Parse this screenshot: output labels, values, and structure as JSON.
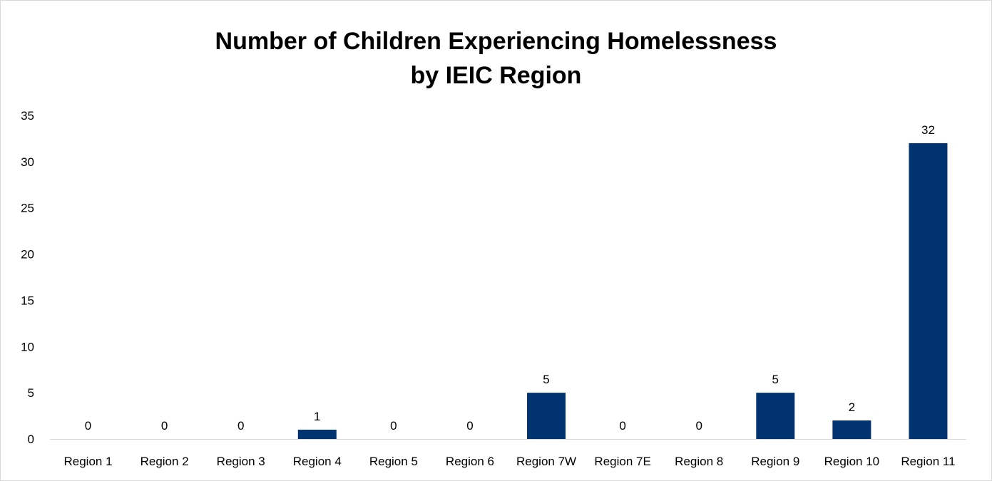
{
  "chart_data": {
    "type": "bar",
    "title": [
      "Number of Children Experiencing Homelessness",
      "by IEIC Region"
    ],
    "xlabel": "",
    "ylabel": "",
    "ylim": [
      0,
      35
    ],
    "yticks": [
      0,
      5,
      10,
      15,
      20,
      25,
      30,
      35
    ],
    "grid": false,
    "legend": "none",
    "bar_color": "#003370",
    "data_labels": true,
    "categories": [
      "Region 1",
      "Region 2",
      "Region 3",
      "Region 4",
      "Region 5",
      "Region 6",
      "Region 7W",
      "Region 7E",
      "Region 8",
      "Region 9",
      "Region 10",
      "Region 11"
    ],
    "values": [
      0,
      0,
      0,
      1,
      0,
      0,
      5,
      0,
      0,
      5,
      2,
      32
    ]
  }
}
